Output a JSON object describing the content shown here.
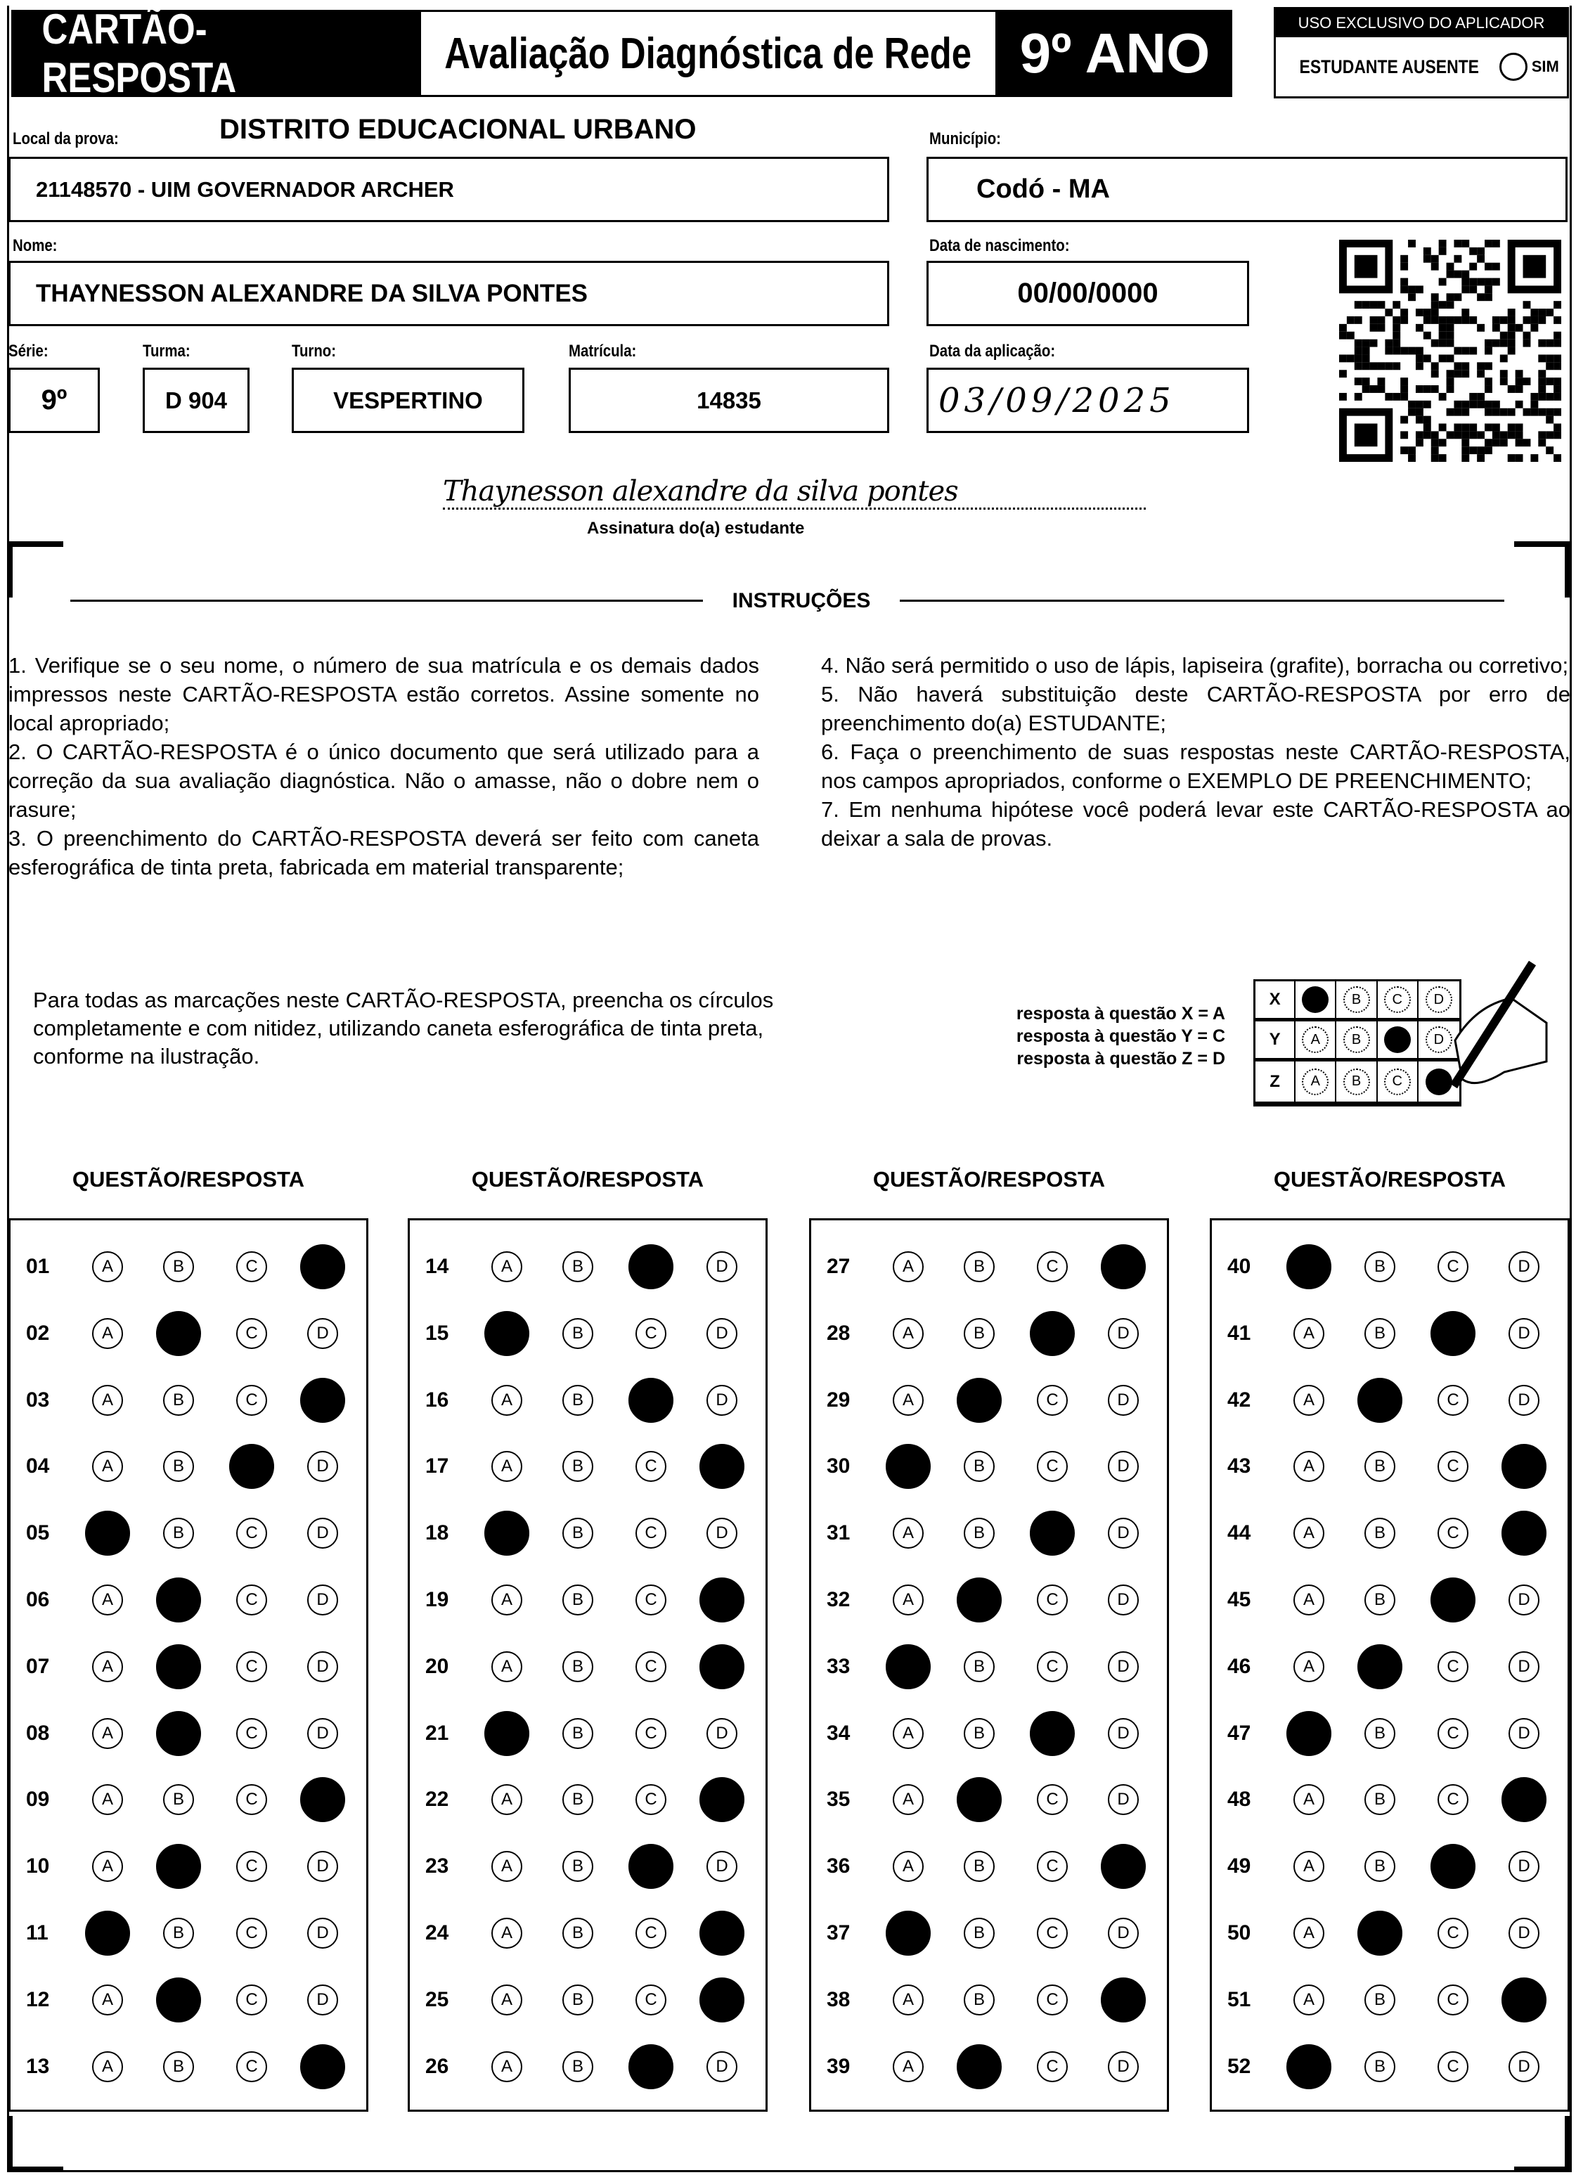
{
  "header": {
    "card_title": "CARTÃO-RESPOSTA",
    "exam_title": "Avaliação Diagnóstica de Rede",
    "grade_title": "9º ANO",
    "applicator_title": "USO EXCLUSIVO DO APLICADOR",
    "absent_label": "ESTUDANTE AUSENTE",
    "absent_option": "SIM"
  },
  "fields": {
    "local_label": "Local da prova:",
    "district": "DISTRITO EDUCACIONAL URBANO",
    "local_value": "21148570 - UIM GOVERNADOR ARCHER",
    "municipio_label": "Município:",
    "municipio_value": "Codó - MA",
    "nome_label": "Nome:",
    "nome_value": "THAYNESSON ALEXANDRE DA SILVA PONTES",
    "nascimento_label": "Data de nascimento:",
    "nascimento_value": "00/00/0000",
    "serie_label": "Série:",
    "serie_value": "9º",
    "turma_label": "Turma:",
    "turma_value": "D 904",
    "turno_label": "Turno:",
    "turno_value": "VESPERTINO",
    "matricula_label": "Matrícula:",
    "matricula_value": "14835",
    "aplicacao_label": "Data da aplicação:",
    "aplicacao_value": "03/09/2025"
  },
  "signature": {
    "handwritten": "Thaynesson alexandre da silva pontes",
    "caption": "Assinatura do(a) estudante"
  },
  "instructions": {
    "title": "INSTRUÇÕES",
    "left": [
      "1. Verifique se o seu nome, o número de sua matrícula e os demais dados impressos neste CARTÃO-RESPOSTA estão corretos. Assine somente no local apropriado;",
      "2. O CARTÃO-RESPOSTA é o único documento que será utilizado para a correção da sua avaliação diagnóstica. Não o amasse, não o dobre nem o rasure;",
      "3. O preenchimento do CARTÃO-RESPOSTA deverá ser feito com caneta esferográfica de tinta preta, fabricada em material transparente;"
    ],
    "right": [
      "4. Não será permitido o uso de lápis, lapiseira (grafite), borracha ou corretivo;",
      "5. Não haverá substituição deste CARTÃO-RESPOSTA por erro de preenchimento do(a) ESTUDANTE;",
      "6. Faça o preenchimento de suas respostas neste CARTÃO-RESPOSTA, nos campos apropriados, conforme o EXEMPLO DE PREENCHIMENTO;",
      "7. Em nenhuma hipótese você poderá levar este CARTÃO-RESPOSTA ao deixar a sala de provas."
    ]
  },
  "fill_note": "Para todas as marcações neste CARTÃO-RESPOSTA, preencha os círculos completamente e com nitidez, utilizando caneta esferográfica de tinta preta, conforme na ilustração.",
  "example": {
    "lines": [
      "resposta à questão X = A",
      "resposta à questão Y = C",
      "resposta à questão Z = D"
    ],
    "rows": [
      {
        "q": "X",
        "mark": "A"
      },
      {
        "q": "Y",
        "mark": "C"
      },
      {
        "q": "Z",
        "mark": "D"
      }
    ]
  },
  "options": [
    "A",
    "B",
    "C",
    "D"
  ],
  "answer_header": "QUESTÃO/RESPOSTA",
  "answers": [
    [
      [
        "01",
        "D"
      ],
      [
        "02",
        "B"
      ],
      [
        "03",
        "D"
      ],
      [
        "04",
        "C"
      ],
      [
        "05",
        "A"
      ],
      [
        "06",
        "B"
      ],
      [
        "07",
        "B"
      ],
      [
        "08",
        "B"
      ],
      [
        "09",
        "D"
      ],
      [
        "10",
        "B"
      ],
      [
        "11",
        "A"
      ],
      [
        "12",
        "B"
      ],
      [
        "13",
        "D"
      ]
    ],
    [
      [
        "14",
        "C"
      ],
      [
        "15",
        "A"
      ],
      [
        "16",
        "C"
      ],
      [
        "17",
        "D"
      ],
      [
        "18",
        "A"
      ],
      [
        "19",
        "D"
      ],
      [
        "20",
        "D"
      ],
      [
        "21",
        "A"
      ],
      [
        "22",
        "D"
      ],
      [
        "23",
        "C"
      ],
      [
        "24",
        "D"
      ],
      [
        "25",
        "D"
      ],
      [
        "26",
        "C"
      ]
    ],
    [
      [
        "27",
        "D"
      ],
      [
        "28",
        "C"
      ],
      [
        "29",
        "B"
      ],
      [
        "30",
        "A"
      ],
      [
        "31",
        "C"
      ],
      [
        "32",
        "B"
      ],
      [
        "33",
        "A"
      ],
      [
        "34",
        "C"
      ],
      [
        "35",
        "B"
      ],
      [
        "36",
        "D"
      ],
      [
        "37",
        "A"
      ],
      [
        "38",
        "D"
      ],
      [
        "39",
        "B"
      ]
    ],
    [
      [
        "40",
        "A"
      ],
      [
        "41",
        "C"
      ],
      [
        "42",
        "B"
      ],
      [
        "43",
        "D"
      ],
      [
        "44",
        "D"
      ],
      [
        "45",
        "C"
      ],
      [
        "46",
        "B"
      ],
      [
        "47",
        "A"
      ],
      [
        "48",
        "D"
      ],
      [
        "49",
        "C"
      ],
      [
        "50",
        "B"
      ],
      [
        "51",
        "D"
      ],
      [
        "52",
        "A"
      ]
    ]
  ]
}
